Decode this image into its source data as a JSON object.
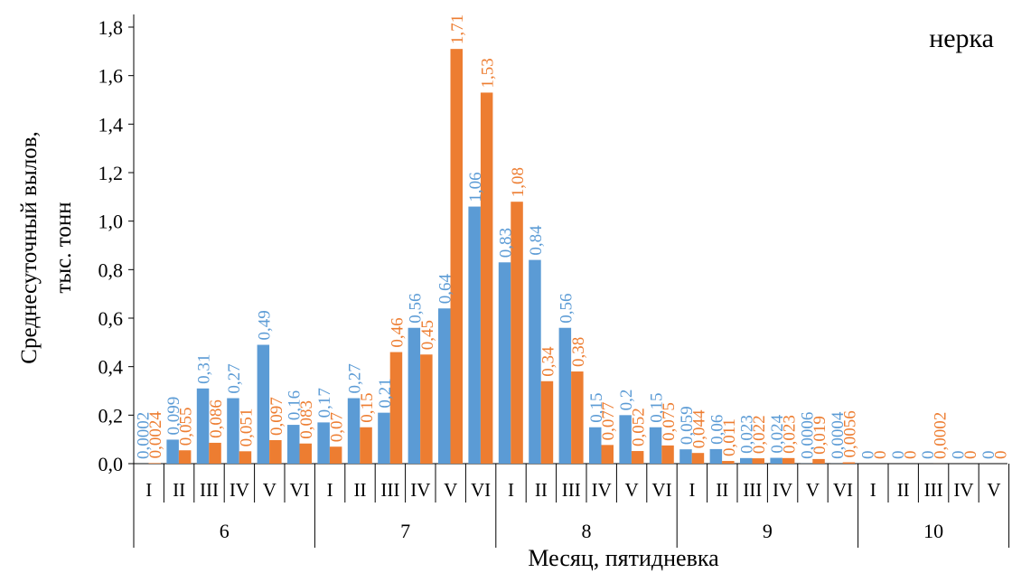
{
  "chart_data": {
    "type": "bar",
    "title": "нерка",
    "xlabel": "Месяц, пятидневка",
    "ylabel_lines": [
      "Среднесуточный вылов,",
      "тыс. тонн"
    ],
    "ylim": [
      0,
      1.8
    ],
    "y_ticks": [
      "0,0",
      "0,2",
      "0,4",
      "0,6",
      "0,8",
      "1,0",
      "1,2",
      "1,4",
      "1,6",
      "1,8"
    ],
    "grid": false,
    "legend": "none",
    "months": [
      {
        "label": "6",
        "pentads": [
          "I",
          "II",
          "III",
          "IV",
          "V",
          "VI"
        ]
      },
      {
        "label": "7",
        "pentads": [
          "I",
          "II",
          "III",
          "IV",
          "V",
          "VI"
        ]
      },
      {
        "label": "8",
        "pentads": [
          "I",
          "II",
          "III",
          "IV",
          "V",
          "VI"
        ]
      },
      {
        "label": "9",
        "pentads": [
          "I",
          "II",
          "III",
          "IV",
          "V",
          "VI"
        ]
      },
      {
        "label": "10",
        "pentads": [
          "I",
          "II",
          "III",
          "IV",
          "V"
        ]
      }
    ],
    "series": [
      {
        "color": "#5B9BD5",
        "values": [
          0.0002,
          0.099,
          0.31,
          0.27,
          0.49,
          0.16,
          0.17,
          0.27,
          0.21,
          0.56,
          0.64,
          1.06,
          0.83,
          0.84,
          0.56,
          0.15,
          0.2,
          0.15,
          0.059,
          0.06,
          0.023,
          0.024,
          0.0006,
          0.0004,
          0,
          0,
          0,
          0,
          0
        ],
        "labels": [
          "0,0002",
          "0,099",
          "0,31",
          "0,27",
          "0,49",
          "0,16",
          "0,17",
          "0,27",
          "0,21",
          "0,56",
          "0,64",
          "1,06",
          "0,83",
          "0,84",
          "0,56",
          "0,15",
          "0,2",
          "0,15",
          "0,059",
          "0,06",
          "0,023",
          "0,024",
          "0,0006",
          "0,0004",
          "0",
          "0",
          "0",
          "0",
          "0"
        ]
      },
      {
        "color": "#ED7D31",
        "values": [
          0.0024,
          0.055,
          0.086,
          0.051,
          0.097,
          0.083,
          0.07,
          0.15,
          0.46,
          0.45,
          1.71,
          1.53,
          1.08,
          0.34,
          0.38,
          0.077,
          0.052,
          0.075,
          0.044,
          0.011,
          0.022,
          0.023,
          0.019,
          0.0056,
          0,
          0,
          0.0002,
          0,
          0
        ],
        "labels": [
          "0,0024",
          "0,055",
          "0,086",
          "0,051",
          "0,097",
          "0,083",
          "0,07",
          "0,15",
          "0,46",
          "0,45",
          "1,71",
          "1,53",
          "1,08",
          "0,34",
          "0,38",
          "0,077",
          "0,052",
          "0,075",
          "0,044",
          "0,011",
          "0,022",
          "0,023",
          "0,019",
          "0,0056",
          "0",
          "0",
          "0,0002",
          "0",
          "0"
        ]
      }
    ]
  }
}
